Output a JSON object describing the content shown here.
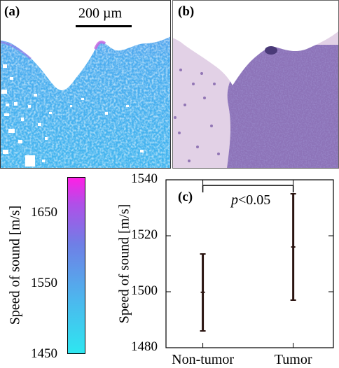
{
  "panel_a": {
    "label": "(a)",
    "scale_bar_text": "200 µm"
  },
  "panel_b": {
    "label": "(b)"
  },
  "colorbar": {
    "label": "Speed of sound [m/s]",
    "ticks": [
      "1650",
      "1550",
      "1450"
    ],
    "tick_values": [
      1650,
      1550,
      1450
    ],
    "min": 1450,
    "max": 1700,
    "color_low": "#2ee6f0",
    "color_mid": "#6f7fe6",
    "color_high": "#ff1fe6"
  },
  "chart_data": {
    "type": "errorbar",
    "panel_label": "(c)",
    "ylabel": "Speed of sound [m/s]",
    "xlabel": "",
    "ylim": [
      1480,
      1540
    ],
    "yticks": [
      1480,
      1500,
      1520,
      1540
    ],
    "categories": [
      "Non-tumor",
      "Tumor"
    ],
    "mean": [
      1499.8,
      1516.0
    ],
    "lower": [
      1486.0,
      1497.0
    ],
    "upper": [
      1513.5,
      1535.0
    ],
    "annotation": "p<0.05",
    "annotation_italic": "p",
    "annotation_rest": "<0.05"
  }
}
